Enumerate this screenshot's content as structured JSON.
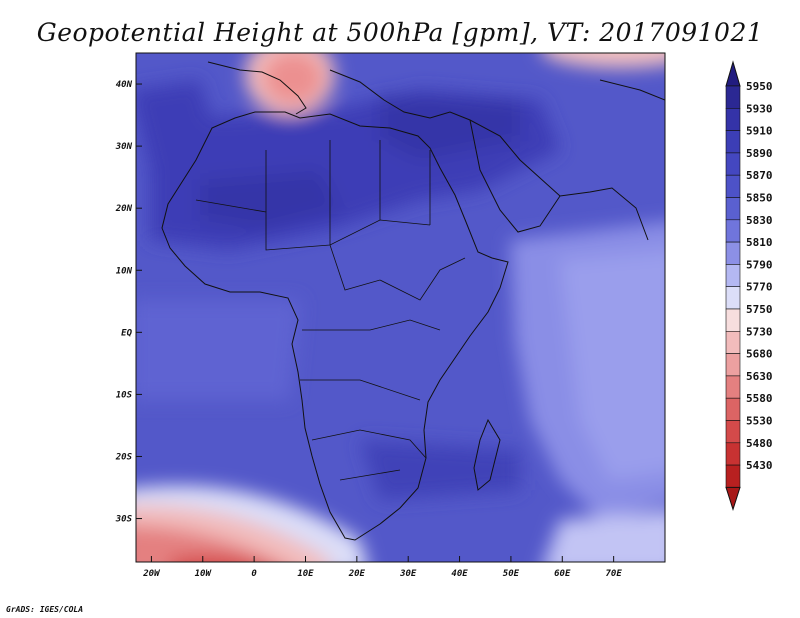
{
  "title": "Geopotential Height at 500hPa [gpm], VT: 2017091021",
  "credit": "GrADS: IGES/COLA",
  "map": {
    "projection": "latlon",
    "lon_range": [
      -23,
      80
    ],
    "lat_range": [
      -37,
      45
    ],
    "lat_ticks": [
      {
        "value": 40,
        "label": "40N"
      },
      {
        "value": 30,
        "label": "30N"
      },
      {
        "value": 20,
        "label": "20N"
      },
      {
        "value": 10,
        "label": "10N"
      },
      {
        "value": 0,
        "label": "EQ"
      },
      {
        "value": -10,
        "label": "10S"
      },
      {
        "value": -20,
        "label": "20S"
      },
      {
        "value": -30,
        "label": "30S"
      }
    ],
    "lon_ticks": [
      {
        "value": -20,
        "label": "20W"
      },
      {
        "value": -10,
        "label": "10W"
      },
      {
        "value": 0,
        "label": "0"
      },
      {
        "value": 10,
        "label": "10E"
      },
      {
        "value": 20,
        "label": "20E"
      },
      {
        "value": 30,
        "label": "30E"
      },
      {
        "value": 40,
        "label": "40E"
      },
      {
        "value": 50,
        "label": "50E"
      },
      {
        "value": 60,
        "label": "60E"
      },
      {
        "value": 70,
        "label": "70E"
      }
    ]
  },
  "colorbar": {
    "levels": [
      "5950",
      "5930",
      "5910",
      "5890",
      "5870",
      "5850",
      "5830",
      "5810",
      "5790",
      "5770",
      "5750",
      "5730",
      "5680",
      "5630",
      "5580",
      "5530",
      "5480",
      "5430"
    ],
    "colors": [
      "#2b2893",
      "#3433a8",
      "#3c3eb6",
      "#4447c0",
      "#4d52c8",
      "#5a60d0",
      "#7075dc",
      "#8c90e6",
      "#b4b8f2",
      "#dcdef8",
      "#f7dede",
      "#f2bcbc",
      "#eca0a0",
      "#e48080",
      "#dc6464",
      "#d44a4a",
      "#c83232",
      "#b82020"
    ],
    "top_color": "#221c80",
    "bottom_color": "#a81818"
  }
}
